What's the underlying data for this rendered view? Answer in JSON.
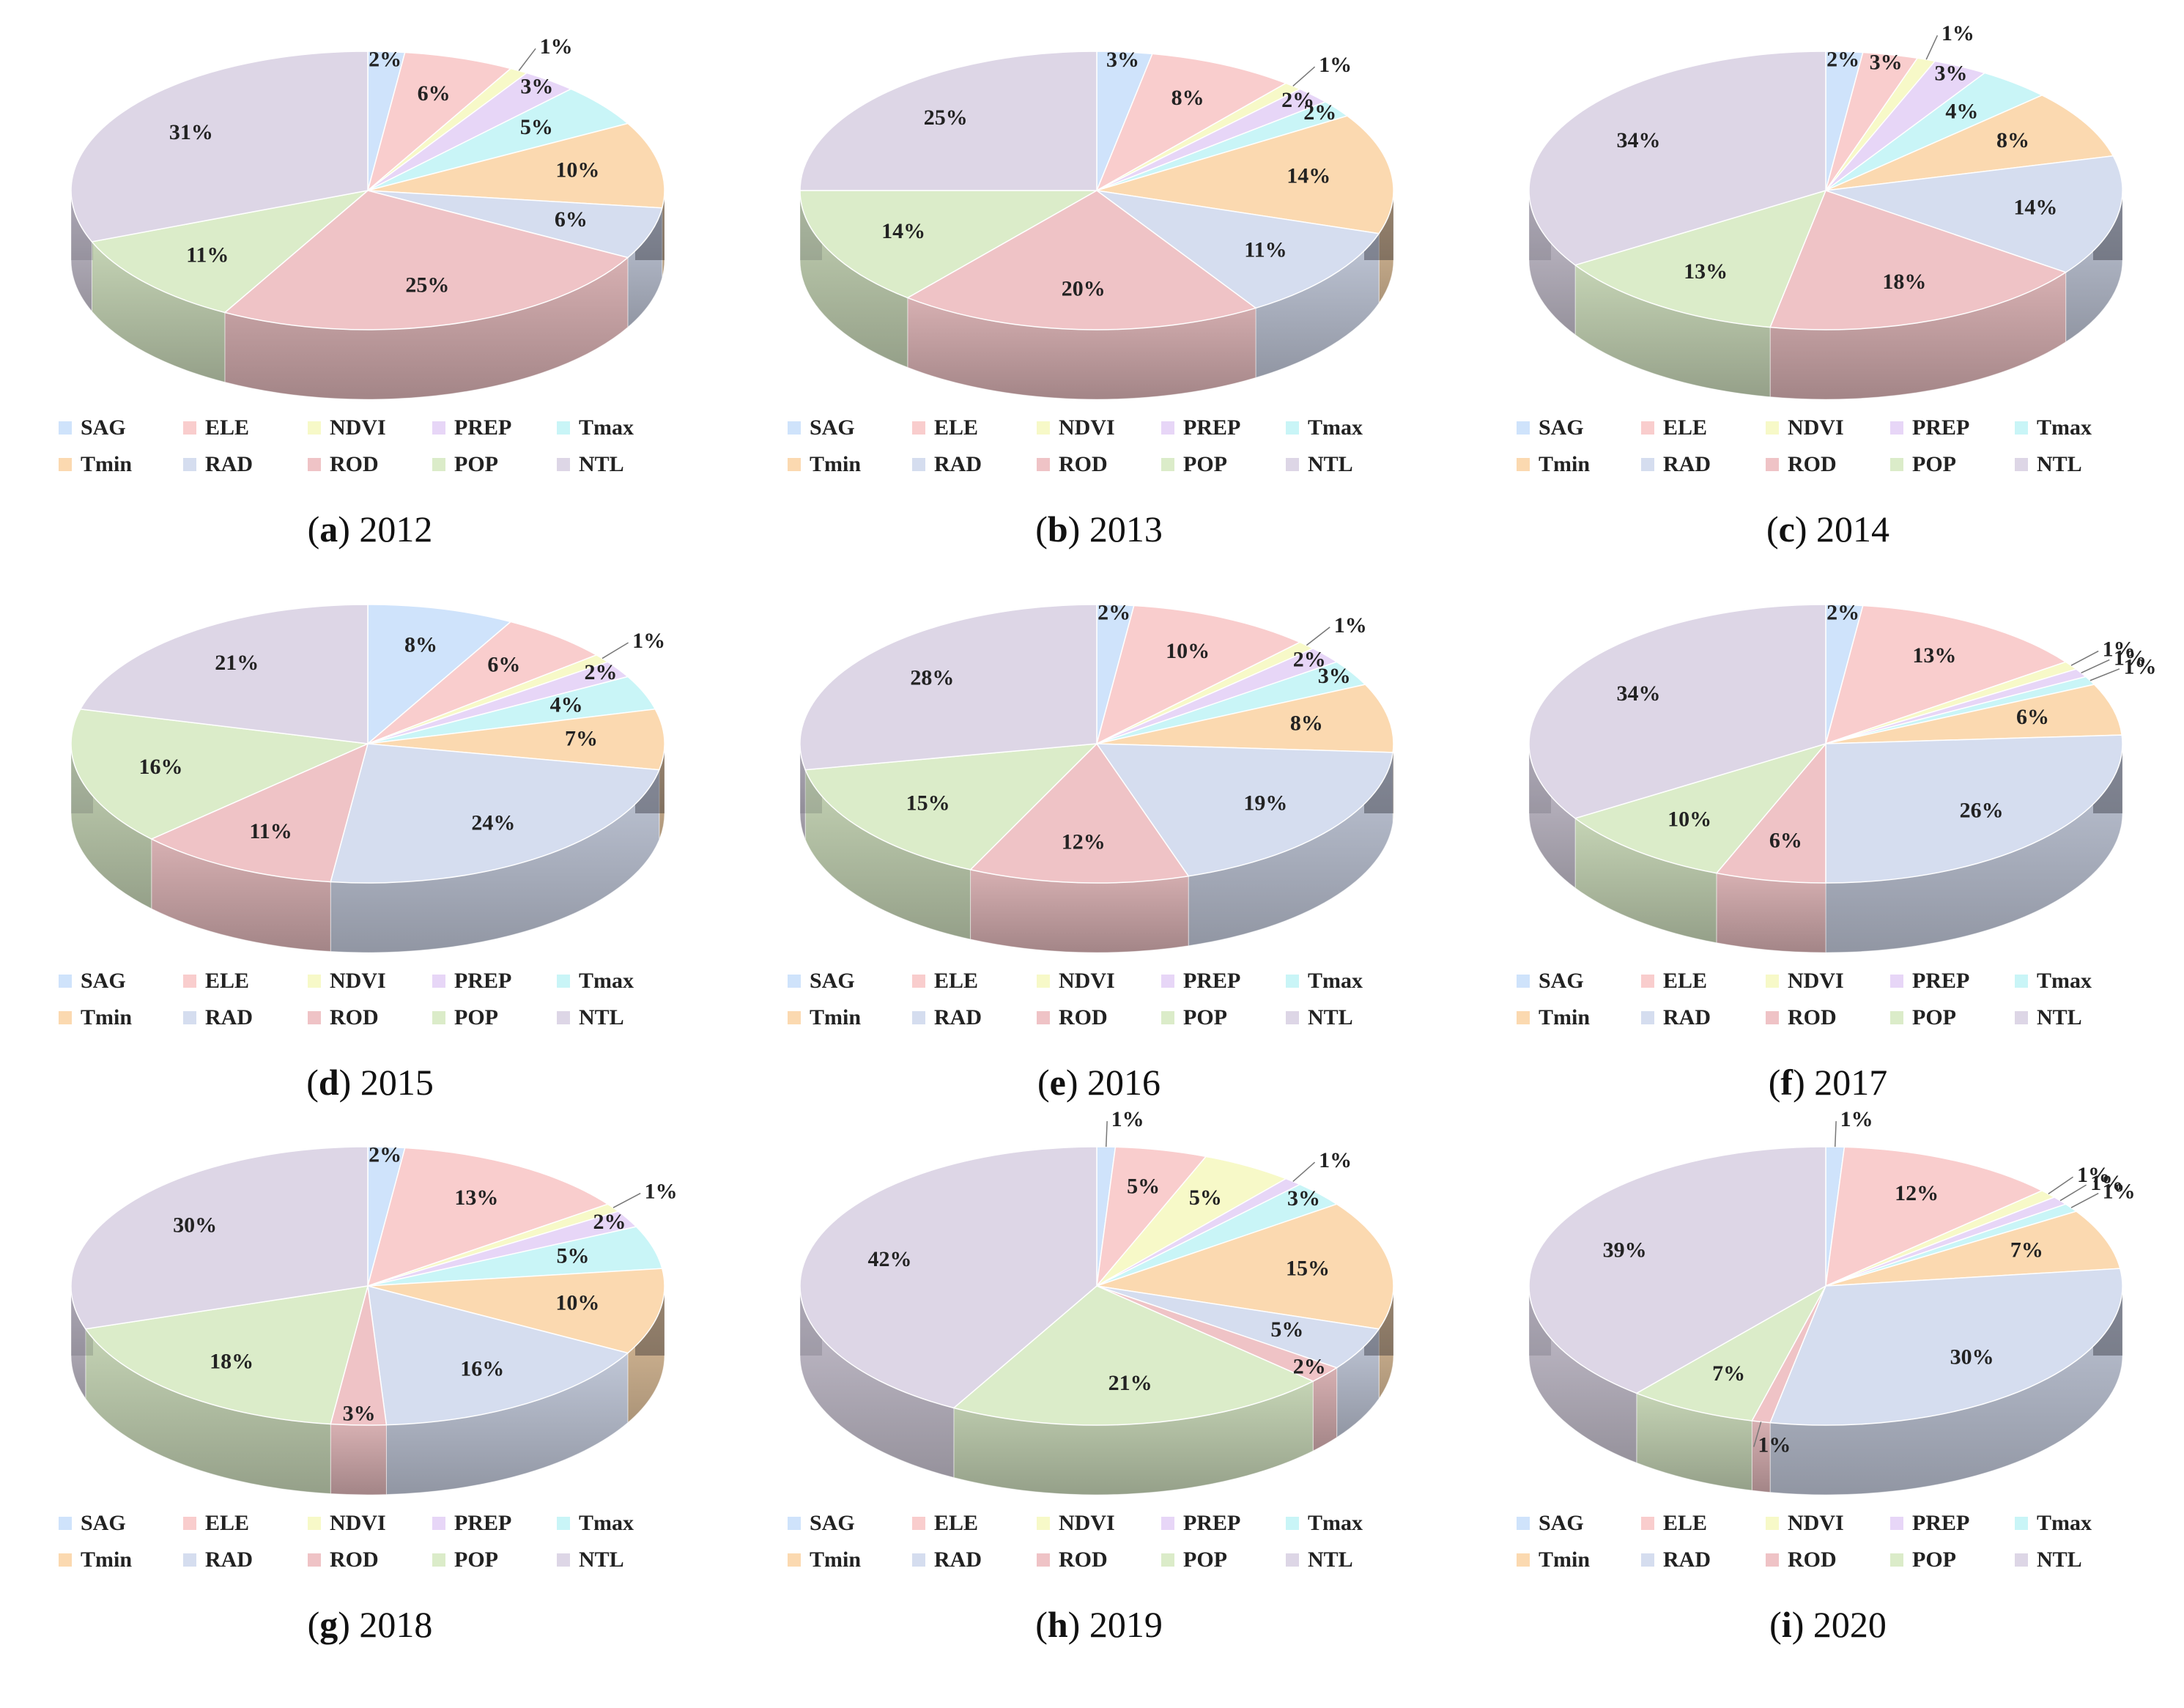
{
  "categories": [
    "SAG",
    "ELE",
    "NDVI",
    "PREP",
    "Tmax",
    "Tmin",
    "RAD",
    "ROD",
    "POP",
    "NTL"
  ],
  "colors": {
    "SAG": "#cfe3fb",
    "ELE": "#f9cdcd",
    "NDVI": "#f7f9c8",
    "PREP": "#e7d6f7",
    "Tmax": "#c9f5f7",
    "Tmin": "#fbd9b0",
    "RAD": "#d5ddef",
    "ROD": "#efc3c6",
    "POP": "#dbecc9",
    "NTL": "#ddd6e6"
  },
  "chart_data": [
    {
      "type": "pie",
      "letter": "a",
      "year": "2012",
      "categories": [
        "SAG",
        "ELE",
        "NDVI",
        "PREP",
        "Tmax",
        "Tmin",
        "RAD",
        "ROD",
        "POP",
        "NTL"
      ],
      "values": [
        2,
        6,
        1,
        3,
        5,
        10,
        6,
        25,
        11,
        31
      ]
    },
    {
      "type": "pie",
      "letter": "b",
      "year": "2013",
      "categories": [
        "SAG",
        "ELE",
        "NDVI",
        "PREP",
        "Tmax",
        "Tmin",
        "RAD",
        "ROD",
        "POP",
        "NTL"
      ],
      "values": [
        3,
        8,
        1,
        2,
        2,
        14,
        11,
        20,
        14,
        25
      ]
    },
    {
      "type": "pie",
      "letter": "c",
      "year": "2014",
      "categories": [
        "SAG",
        "ELE",
        "NDVI",
        "PREP",
        "Tmax",
        "Tmin",
        "RAD",
        "ROD",
        "POP",
        "NTL"
      ],
      "values": [
        2,
        3,
        1,
        3,
        4,
        8,
        14,
        18,
        13,
        34
      ]
    },
    {
      "type": "pie",
      "letter": "d",
      "year": "2015",
      "categories": [
        "SAG",
        "ELE",
        "NDVI",
        "PREP",
        "Tmax",
        "Tmin",
        "RAD",
        "ROD",
        "POP",
        "NTL"
      ],
      "values": [
        8,
        6,
        1,
        2,
        4,
        7,
        24,
        11,
        16,
        21
      ]
    },
    {
      "type": "pie",
      "letter": "e",
      "year": "2016",
      "categories": [
        "SAG",
        "ELE",
        "NDVI",
        "PREP",
        "Tmax",
        "Tmin",
        "RAD",
        "ROD",
        "POP",
        "NTL"
      ],
      "values": [
        2,
        10,
        1,
        2,
        3,
        8,
        19,
        12,
        15,
        28
      ]
    },
    {
      "type": "pie",
      "letter": "f",
      "year": "2017",
      "categories": [
        "SAG",
        "ELE",
        "NDVI",
        "PREP",
        "Tmax",
        "Tmin",
        "RAD",
        "ROD",
        "POP",
        "NTL"
      ],
      "values": [
        2,
        13,
        1,
        1,
        1,
        6,
        26,
        6,
        10,
        34
      ]
    },
    {
      "type": "pie",
      "letter": "g",
      "year": "2018",
      "categories": [
        "SAG",
        "ELE",
        "NDVI",
        "PREP",
        "Tmax",
        "Tmin",
        "RAD",
        "ROD",
        "POP",
        "NTL"
      ],
      "values": [
        2,
        13,
        1,
        2,
        5,
        10,
        16,
        3,
        18,
        30
      ]
    },
    {
      "type": "pie",
      "letter": "h",
      "year": "2019",
      "categories": [
        "SAG",
        "ELE",
        "NDVI",
        "PREP",
        "Tmax",
        "Tmin",
        "RAD",
        "ROD",
        "POP",
        "NTL"
      ],
      "values": [
        1,
        5,
        5,
        1,
        3,
        15,
        5,
        2,
        21,
        42
      ]
    },
    {
      "type": "pie",
      "letter": "i",
      "year": "2020",
      "categories": [
        "SAG",
        "ELE",
        "NDVI",
        "PREP",
        "Tmax",
        "Tmin",
        "RAD",
        "ROD",
        "POP",
        "NTL"
      ],
      "values": [
        1,
        12,
        1,
        1,
        1,
        7,
        30,
        1,
        7,
        39
      ]
    }
  ]
}
